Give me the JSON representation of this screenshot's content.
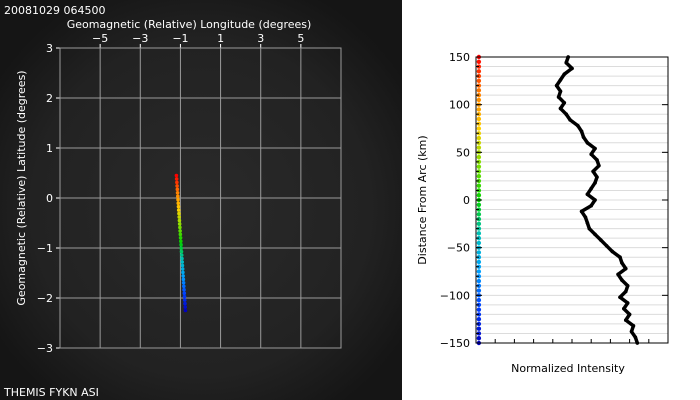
{
  "timestamp": "20081029 064500",
  "footer_label": "THEMIS FYKN ASI",
  "colors": {
    "sky_background": "#1c1c1c",
    "grid": "#9a9a9a",
    "left_text": "#ffffff",
    "right_text": "#000000",
    "intensity_trace": "#000000",
    "colorbar": [
      "#ff0000",
      "#ff8000",
      "#ffd000",
      "#80e000",
      "#00d000",
      "#00c0c0",
      "#00a0ff",
      "#0040ff",
      "#0000c0"
    ]
  },
  "chart_data": [
    {
      "type": "scatter",
      "id": "map",
      "title": "Geomagnetic (Relative) Longitude (degrees)",
      "xlabel": "",
      "ylabel": "Geomagnetic (Relative) Latitude (degrees)",
      "xlim": [
        -7,
        7
      ],
      "ylim": [
        -3,
        3
      ],
      "x_ticks": [
        -5,
        -3,
        -1,
        1,
        3,
        5
      ],
      "x_tick_labels": [
        "−5",
        "−3",
        "−1",
        "1",
        "3",
        "5"
      ],
      "y_ticks": [
        -3,
        -2,
        -1,
        0,
        1,
        2,
        3
      ],
      "y_tick_labels": [
        "−3",
        "−2",
        "−1",
        "0",
        "1",
        "2",
        "3"
      ],
      "x_grid": [
        -7,
        -5,
        -3,
        -1,
        1,
        3,
        5,
        7
      ],
      "grid": true,
      "track": {
        "start": [
          -1.2,
          0.45
        ],
        "end": [
          -0.75,
          -2.25
        ],
        "n_points": 40
      }
    },
    {
      "type": "line",
      "id": "profile",
      "xlabel": "Normalized Intensity",
      "ylabel": "Distance From Arc (km)",
      "xlim": [
        0,
        1
      ],
      "ylim": [
        -150,
        150
      ],
      "y_ticks": [
        -150,
        -100,
        -50,
        0,
        50,
        100,
        150
      ],
      "y_tick_labels": [
        "−150",
        "−100",
        "−50",
        "0",
        "50",
        "100",
        "150"
      ],
      "grid": true,
      "series": [
        {
          "x": [
            0.48,
            0.47,
            0.5,
            0.46,
            0.44,
            0.42,
            0.44,
            0.43,
            0.46,
            0.44,
            0.47,
            0.49,
            0.53,
            0.55,
            0.56,
            0.58,
            0.62,
            0.6,
            0.63,
            0.64,
            0.61,
            0.63,
            0.62,
            0.6,
            0.58,
            0.62,
            0.6,
            0.55,
            0.57,
            0.58,
            0.59,
            0.62,
            0.65,
            0.68,
            0.71,
            0.75,
            0.76,
            0.78,
            0.74,
            0.76,
            0.79,
            0.78,
            0.75,
            0.79,
            0.77,
            0.8,
            0.78,
            0.82,
            0.81,
            0.83,
            0.84
          ],
          "y": [
            150,
            144,
            138,
            132,
            126,
            120,
            114,
            108,
            102,
            96,
            90,
            84,
            78,
            72,
            66,
            60,
            54,
            48,
            42,
            36,
            30,
            24,
            18,
            12,
            6,
            0,
            -6,
            -12,
            -18,
            -24,
            -30,
            -36,
            -42,
            -48,
            -54,
            -60,
            -66,
            -72,
            -78,
            -84,
            -90,
            -96,
            -102,
            -108,
            -114,
            -120,
            -126,
            -132,
            -138,
            -144,
            -150
          ]
        }
      ]
    }
  ]
}
